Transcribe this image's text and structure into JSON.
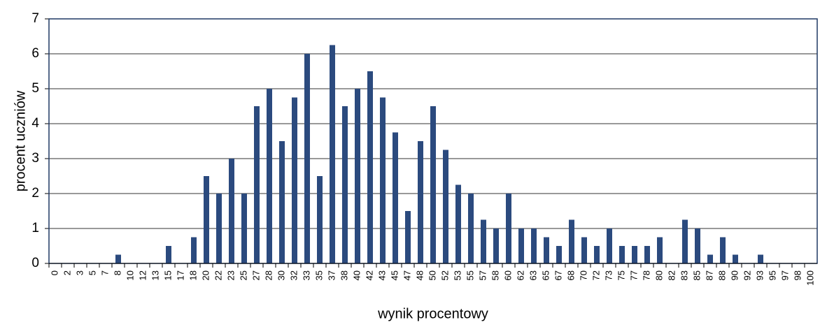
{
  "chart_data": {
    "type": "bar",
    "x_label": "wynik procentowy",
    "y_label": "procent uczniów",
    "categories": [
      "0",
      "2",
      "3",
      "5",
      "7",
      "8",
      "10",
      "12",
      "13",
      "15",
      "17",
      "18",
      "20",
      "22",
      "23",
      "25",
      "27",
      "28",
      "30",
      "32",
      "33",
      "35",
      "37",
      "38",
      "40",
      "42",
      "43",
      "45",
      "47",
      "48",
      "50",
      "52",
      "53",
      "55",
      "57",
      "58",
      "60",
      "62",
      "63",
      "65",
      "67",
      "68",
      "70",
      "72",
      "73",
      "75",
      "77",
      "78",
      "80",
      "82",
      "83",
      "85",
      "87",
      "88",
      "90",
      "92",
      "93",
      "95",
      "97",
      "98",
      "100"
    ],
    "values": [
      0,
      0,
      0,
      0,
      0,
      0.25,
      0,
      0,
      0,
      0.5,
      0,
      0.75,
      2.5,
      2,
      3,
      2,
      4.5,
      5,
      3.5,
      4.75,
      6,
      2.5,
      6.25,
      4.5,
      5,
      5.5,
      4.75,
      3.75,
      1.5,
      3.5,
      4.5,
      3.25,
      2.25,
      2,
      1.25,
      1,
      2,
      1,
      1,
      0.75,
      0.5,
      1.25,
      0.75,
      0.5,
      1,
      0.5,
      0.5,
      0.5,
      0.75,
      0,
      1.25,
      1,
      0.25,
      0.75,
      0.25,
      0,
      0.25,
      0,
      0,
      0,
      0
    ],
    "color": "#2b4a7e",
    "ylim": [
      0,
      7
    ],
    "yticks": [
      0,
      1,
      2,
      3,
      4,
      5,
      6,
      7
    ],
    "grid": true
  }
}
